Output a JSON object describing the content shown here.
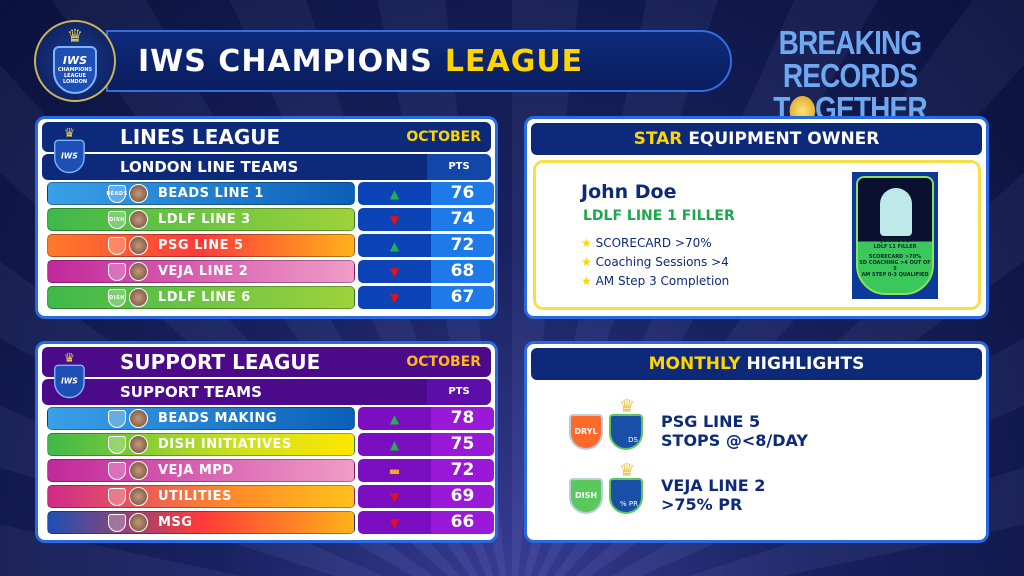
{
  "header": {
    "title_main": "IWS CHAMPIONS",
    "title_accent": "LEAGUE",
    "logo_text": [
      "IWS",
      "CHAMPIONS",
      "LEAGUE",
      "LONDON"
    ],
    "slogan_line1": "BREAKING RECORDS",
    "slogan_line2_a": "T",
    "slogan_line2_b": "GETHER"
  },
  "lines_league": {
    "title": "LINES LEAGUE",
    "month": "OCTOBER",
    "subtitle": "LONDON LINE TEAMS",
    "pts_label": "PTS",
    "rows": [
      {
        "name": "BEADS LINE 1",
        "trend": "up",
        "pts": "76",
        "badge": "BEADS",
        "grad": "linear-gradient(90deg,#3aa0e8,#0c5fb8)"
      },
      {
        "name": "LDLF LINE 3",
        "trend": "down",
        "pts": "74",
        "badge": "DISH",
        "grad": "linear-gradient(90deg,#3fb84a,#9ed23a)"
      },
      {
        "name": "PSG LINE 5",
        "trend": "up",
        "pts": "72",
        "badge": "",
        "grad": "linear-gradient(90deg,#ff7a2a,#ff3a3a 50%,#ffb21a)"
      },
      {
        "name": "VEJA LINE 2",
        "trend": "down",
        "pts": "68",
        "badge": "",
        "grad": "linear-gradient(90deg,#c2289a,#f09cc8)"
      },
      {
        "name": "LDLF LINE 6",
        "trend": "down",
        "pts": "67",
        "badge": "DISH",
        "grad": "linear-gradient(90deg,#3fb84a,#9ed23a)"
      }
    ]
  },
  "support_league": {
    "title": "SUPPORT LEAGUE",
    "month": "OCTOBER",
    "subtitle": "SUPPORT TEAMS",
    "pts_label": "PTS",
    "rows": [
      {
        "name": "BEADS MAKING",
        "trend": "up",
        "pts": "78",
        "badge": "",
        "grad": "linear-gradient(90deg,#3aa0e8,#0c5fb8)"
      },
      {
        "name": "DISH INITIATIVES",
        "trend": "up",
        "pts": "75",
        "badge": "",
        "grad": "linear-gradient(90deg,#3fb84a,#c8e020 60%,#ffe600)"
      },
      {
        "name": "VEJA MPD",
        "trend": "same",
        "pts": "72",
        "badge": "",
        "grad": "linear-gradient(90deg,#c2289a,#f09cc8)"
      },
      {
        "name": "UTILITIES",
        "trend": "down",
        "pts": "69",
        "badge": "",
        "grad": "linear-gradient(90deg,#d02a8a,#ff8a2a 60%,#ffc21a)"
      },
      {
        "name": "MSG",
        "trend": "down",
        "pts": "66",
        "badge": "",
        "grad": "linear-gradient(90deg,#1e4fb5,#ff3a3a 50%,#ffb21a)"
      }
    ]
  },
  "star_owner": {
    "title_accent": "STAR",
    "title_rest": "EQUIPMENT OWNER",
    "name": "John Doe",
    "role": "LDLF LINE 1 FILLER",
    "criteria": [
      "SCORECARD >70%",
      "Coaching Sessions >4",
      "AM Step 3 Completion"
    ],
    "card": {
      "name": "JOHN DOE",
      "role": "LDLF L1 FILLER",
      "lines": [
        "SCORECARD >70%",
        "SD COACHING >4 OUT OF 5",
        "AM STEP 0-3 QUALIFIED"
      ]
    }
  },
  "highlights": {
    "title_accent": "MONTHLY",
    "title_rest": "HIGHLIGHTS",
    "items": [
      {
        "team": "PSG LINE 5",
        "detail": "STOPS @<8/DAY",
        "badge": "DRYL",
        "award": "DS"
      },
      {
        "team": "VEJA LINE 2",
        "detail": ">75% PR",
        "badge": "DISH",
        "award": "% PR"
      }
    ]
  },
  "colors": {
    "accent": "#ffd400",
    "navy": "#0a1d5e",
    "purple": "#4a0a8a",
    "up": "#22b04a",
    "down": "#e81010"
  }
}
